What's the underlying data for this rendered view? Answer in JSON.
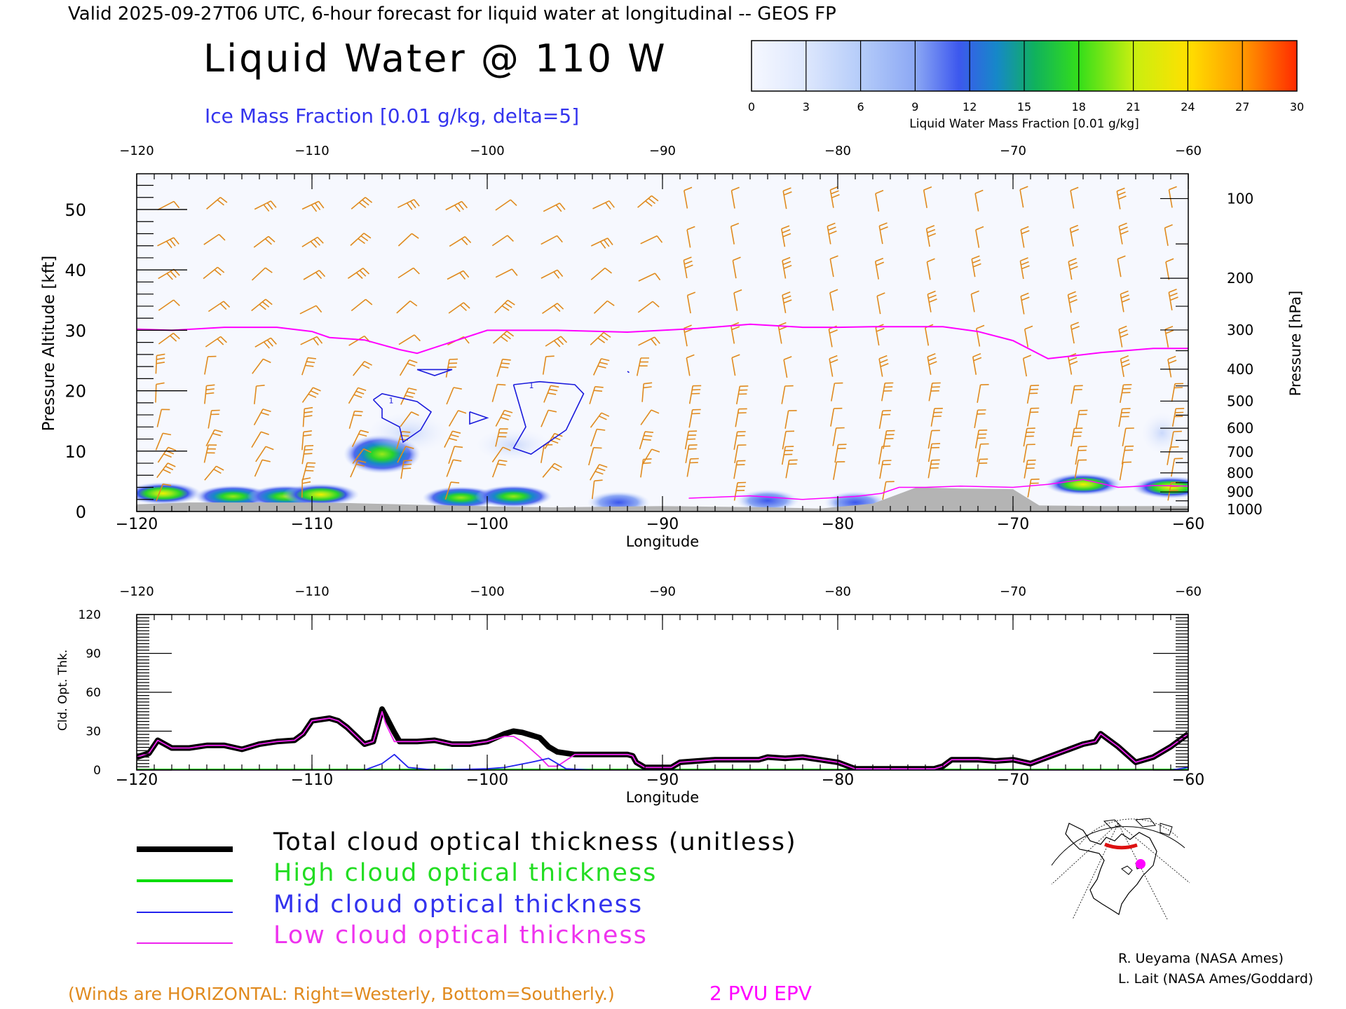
{
  "header": {
    "valid_line": "Valid 2025-09-27T06 UTC, 6-hour forecast for liquid water at longitudinal -- GEOS FP",
    "main_title": "Liquid Water @ 110 W",
    "ice_subtitle": "Ice Mass Fraction [0.01 g/kg, delta=5]"
  },
  "colorbar": {
    "ticks": [
      "0",
      "3",
      "6",
      "9",
      "12",
      "15",
      "18",
      "21",
      "24",
      "27",
      "30"
    ],
    "label": "Liquid Water Mass Fraction [0.01 g/kg]",
    "colors": [
      "#f4f6ff",
      "#c9d8fb",
      "#a3bdf7",
      "#7c9af2",
      "#3a56ec",
      "#12a6a0",
      "#27d42b",
      "#9ae81a",
      "#f3f000",
      "#ffb400",
      "#ff7a00",
      "#ff2a00"
    ]
  },
  "top_panel": {
    "ylabel_left": "Pressure Altitude [kft]",
    "ylabel_right": "Pressure [hPa]",
    "xlabel": "Longitude",
    "x_ticks": [
      "−120",
      "−110",
      "−100",
      "−90",
      "−80",
      "−70",
      "−60"
    ],
    "kft_ticks": [
      "0",
      "10",
      "20",
      "30",
      "40",
      "50"
    ],
    "hpa_ticks": [
      "100",
      "200",
      "300",
      "400",
      "500",
      "600",
      "700",
      "800",
      "900",
      "1000"
    ],
    "ice_contour_label": "1"
  },
  "bottom_panel": {
    "ylabel": "Cld. Opt. Thk.",
    "xlabel": "Longitude",
    "x_ticks": [
      "−120",
      "−110",
      "−100",
      "−90",
      "−80",
      "−70",
      "−60"
    ],
    "y_ticks": [
      "0",
      "30",
      "60",
      "90",
      "120"
    ]
  },
  "legend": {
    "total": "Total cloud optical thickness (unitless)",
    "high": "High cloud optical thickness",
    "mid": "Mid cloud optical thickness",
    "low": "Low cloud optical thickness"
  },
  "footer": {
    "winds_note": "(Winds are HORIZONTAL: Right=Westerly, Bottom=Southerly.)",
    "epv_label": "2 PVU EPV",
    "credit1": "R. Ueyama (NASA Ames)",
    "credit2": "L. Lait (NASA Ames/Goddard)"
  },
  "colors": {
    "wind": "#e08a1e",
    "epv": "#ff00ff",
    "ice": "#1a1adc",
    "total": "#000000",
    "high": "#00dd00",
    "mid": "#2222ee",
    "low": "#ee22ee",
    "terrain": "#b4b4b4"
  },
  "chart_data": [
    {
      "type": "heatmap",
      "title": "Liquid Water @ 110 W",
      "subtitle": "Ice Mass Fraction [0.01 g/kg, delta=5]",
      "xlabel": "Longitude",
      "ylabel": "Pressure Altitude [kft]",
      "ylabel_right": "Pressure [hPa]",
      "xlim": [
        -120,
        -60
      ],
      "ylim": [
        0,
        55
      ],
      "color_scale": {
        "min": 0,
        "max": 30,
        "label": "Liquid Water Mass Fraction [0.01 g/kg]"
      },
      "liquid_water_blobs": [
        {
          "lon": -118.5,
          "kft": 3.0,
          "value": 20
        },
        {
          "lon": -114.5,
          "kft": 2.5,
          "value": 18
        },
        {
          "lon": -111.5,
          "kft": 2.5,
          "value": 19
        },
        {
          "lon": -109.5,
          "kft": 2.8,
          "value": 21
        },
        {
          "lon": -106.0,
          "kft": 9.5,
          "value": 14
        },
        {
          "lon": -101.5,
          "kft": 2.3,
          "value": 17
        },
        {
          "lon": -98.5,
          "kft": 2.5,
          "value": 14
        },
        {
          "lon": -92.5,
          "kft": 1.5,
          "value": 8
        },
        {
          "lon": -84.0,
          "kft": 1.8,
          "value": 12
        },
        {
          "lon": -79.0,
          "kft": 1.5,
          "value": 10
        },
        {
          "lon": -66.0,
          "kft": 4.5,
          "value": 22
        },
        {
          "lon": -61.0,
          "kft": 4.0,
          "value": 20
        }
      ],
      "ice_contours": [
        {
          "level": 1,
          "lon": [
            -106.5,
            -106.0,
            -104.0,
            -103.2,
            -103.8,
            -104.8,
            -105.0,
            -106.0,
            -106.0,
            -106.5
          ],
          "kft": [
            18.5,
            19.5,
            18.2,
            16.5,
            13.5,
            11.5,
            14.0,
            15.5,
            17.0,
            18.5
          ]
        },
        {
          "lon": [
            -104.0,
            -102.0,
            -103.0,
            -104.0
          ],
          "kft": [
            23.5,
            23.5,
            22.5,
            23.5
          ]
        },
        {
          "lon": [
            -101.0,
            -100.0,
            -101.0,
            -101.0
          ],
          "kft": [
            16.5,
            15.5,
            14.5,
            16.5
          ]
        },
        {
          "level": 1,
          "lon": [
            -98.5,
            -97.0,
            -95.0,
            -94.5,
            -95.5,
            -97.5,
            -98.5,
            -97.8,
            -98.5
          ],
          "kft": [
            21.0,
            21.5,
            21.0,
            19.5,
            13.5,
            9.5,
            10.5,
            14.0,
            21.0
          ]
        },
        {
          "lon": [
            -92.0,
            -91.9
          ],
          "kft": [
            23.2,
            23.0
          ]
        }
      ],
      "epv_2pvu": {
        "lon": [
          -120,
          -118,
          -115,
          -112,
          -110,
          -109,
          -107,
          -105,
          -104,
          -100,
          -96,
          -92,
          -88,
          -85,
          -82,
          -80,
          -78,
          -74,
          -72,
          -70,
          -68,
          -65,
          -62,
          -60
        ],
        "kft": [
          30.2,
          30.0,
          30.5,
          30.5,
          29.8,
          28.8,
          28.4,
          26.8,
          26.2,
          30.0,
          30.0,
          29.7,
          30.3,
          31.0,
          30.5,
          30.5,
          30.6,
          30.6,
          29.8,
          28.3,
          25.3,
          26.3,
          27.0,
          27.0
        ]
      },
      "terrain_kft": {
        "lon": [
          -120,
          -117,
          -114,
          -111,
          -108,
          -105,
          -102,
          -99,
          -96,
          -93,
          -90,
          -87,
          -84,
          -81,
          -78,
          -75.5,
          -73,
          -70,
          -68.5,
          -65,
          -62,
          -60
        ],
        "kft": [
          1.2,
          1.5,
          1.5,
          1.5,
          1.4,
          1.2,
          1.0,
          0.8,
          0.7,
          0.8,
          0.9,
          0.8,
          0.7,
          0.5,
          1.3,
          4.0,
          3.8,
          3.7,
          1.0,
          0.9,
          0.9,
          0.9
        ]
      }
    },
    {
      "type": "line",
      "ylabel": "Cld. Opt. Thk.",
      "xlabel": "Longitude",
      "xlim": [
        -120,
        -60
      ],
      "ylim": [
        0,
        120
      ],
      "series": [
        {
          "name": "Total cloud optical thickness (unitless)",
          "x": [
            -120,
            -119.3,
            -118.8,
            -118,
            -117,
            -116,
            -115,
            -114,
            -113,
            -112,
            -111,
            -110.5,
            -110,
            -109,
            -108.5,
            -108,
            -107,
            -106.5,
            -106,
            -105.8,
            -105.3,
            -105,
            -104,
            -103,
            -102,
            -101,
            -100,
            -99,
            -98.5,
            -98,
            -97,
            -96.5,
            -96,
            -95,
            -94,
            -93,
            -92,
            -91.7,
            -91.5,
            -91,
            -90,
            -89.5,
            -89,
            -88,
            -87,
            -86,
            -85,
            -84.5,
            -84,
            -83,
            -82,
            -81,
            -80,
            -79,
            -78,
            -77,
            -76,
            -75,
            -74.5,
            -74,
            -73.5,
            -73,
            -72,
            -71,
            -70,
            -69,
            -68,
            -67,
            -66,
            -65.3,
            -65,
            -64,
            -63,
            -62,
            -61,
            -60
          ],
          "values": [
            10,
            13,
            23,
            17,
            17,
            19,
            19,
            16,
            20,
            22,
            23,
            28,
            38,
            40,
            38,
            33,
            20,
            22,
            47,
            42,
            29,
            22,
            22,
            23,
            20,
            20,
            22,
            28,
            30,
            29,
            25,
            18,
            14,
            12,
            12,
            12,
            12,
            11,
            6,
            2,
            2,
            2,
            6,
            7,
            8,
            8,
            8,
            8,
            10,
            9,
            10,
            8,
            6,
            1,
            1,
            1,
            1,
            1,
            1,
            3,
            8,
            8,
            8,
            7,
            8,
            5,
            10,
            15,
            20,
            22,
            28,
            18,
            6,
            10,
            18,
            28
          ]
        },
        {
          "name": "High cloud optical thickness",
          "x": [
            -120,
            -60
          ],
          "values": [
            0,
            0
          ]
        },
        {
          "name": "Mid cloud optical thickness",
          "x": [
            -120,
            -107,
            -106,
            -105.3,
            -104.5,
            -103,
            -100,
            -99,
            -97.5,
            -96.5,
            -95.5,
            -94,
            -90,
            -61,
            -60
          ],
          "values": [
            0,
            0,
            5,
            12,
            2,
            0,
            1,
            2,
            6,
            9,
            1,
            0,
            0,
            0,
            2
          ]
        },
        {
          "name": "Low cloud optical thickness",
          "x": [
            -120,
            -119.3,
            -118.8,
            -118,
            -117,
            -116,
            -115,
            -114,
            -113,
            -112,
            -111,
            -110.5,
            -110,
            -109,
            -108.5,
            -108,
            -107,
            -106.5,
            -106,
            -105.8,
            -105.3,
            -105,
            -104,
            -103,
            -102,
            -101,
            -100,
            -99,
            -98.5,
            -98,
            -97,
            -96.5,
            -96,
            -95,
            -94,
            -93,
            -92,
            -91.7,
            -91.5,
            -91,
            -90,
            -89.5,
            -89,
            -88,
            -87,
            -86,
            -85,
            -84.5,
            -84,
            -83,
            -82,
            -81,
            -80,
            -79,
            -78,
            -77,
            -76,
            -75,
            -74.5,
            -74,
            -73.5,
            -73,
            -72,
            -71,
            -70,
            -69,
            -68,
            -67,
            -66,
            -65.3,
            -65,
            -64,
            -63,
            -62,
            -61,
            -60
          ],
          "values": [
            10,
            13,
            23,
            17,
            17,
            19,
            19,
            16,
            20,
            22,
            23,
            28,
            38,
            40,
            38,
            33,
            20,
            22,
            45,
            36,
            22,
            22,
            22,
            23,
            20,
            20,
            22,
            26,
            26,
            22,
            10,
            3,
            3,
            12,
            12,
            12,
            12,
            11,
            6,
            2,
            2,
            2,
            6,
            7,
            8,
            8,
            8,
            8,
            10,
            9,
            10,
            8,
            6,
            1,
            1,
            1,
            1,
            1,
            1,
            3,
            8,
            8,
            8,
            7,
            8,
            5,
            10,
            15,
            20,
            22,
            28,
            18,
            6,
            10,
            18,
            28
          ]
        }
      ]
    }
  ]
}
